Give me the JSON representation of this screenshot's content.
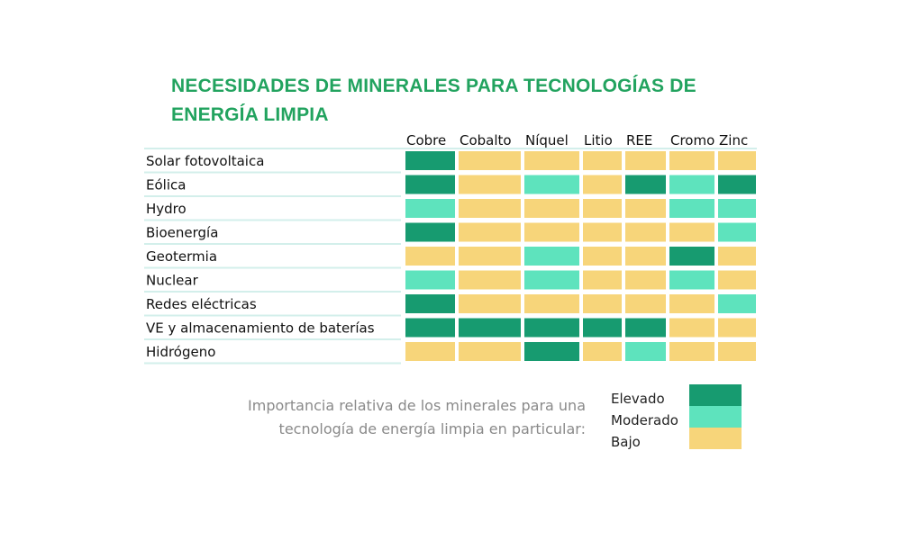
{
  "chart_data": {
    "type": "table",
    "title_lines": [
      "NECESIDADES DE MINERALES PARA TECNOLOGÍAS DE",
      "ENERGÍA LIMPIA"
    ],
    "columns": [
      "Cobre",
      "Cobalto",
      "Níquel",
      "Litio",
      "REE",
      "Cromo",
      "Zinc"
    ],
    "rows": [
      {
        "label": "Solar fotovoltaica",
        "levels": [
          "Elevado",
          "Bajo",
          "Bajo",
          "Bajo",
          "Bajo",
          "Bajo",
          "Bajo"
        ]
      },
      {
        "label": "Eólica",
        "levels": [
          "Elevado",
          "Bajo",
          "Moderado",
          "Bajo",
          "Elevado",
          "Moderado",
          "Elevado"
        ]
      },
      {
        "label": "Hydro",
        "levels": [
          "Moderado",
          "Bajo",
          "Bajo",
          "Bajo",
          "Bajo",
          "Moderado",
          "Moderado"
        ]
      },
      {
        "label": "Bioenergía",
        "levels": [
          "Elevado",
          "Bajo",
          "Bajo",
          "Bajo",
          "Bajo",
          "Bajo",
          "Moderado"
        ]
      },
      {
        "label": "Geotermia",
        "levels": [
          "Bajo",
          "Bajo",
          "Moderado",
          "Bajo",
          "Bajo",
          "Elevado",
          "Bajo"
        ]
      },
      {
        "label": "Nuclear",
        "levels": [
          "Moderado",
          "Bajo",
          "Moderado",
          "Bajo",
          "Bajo",
          "Moderado",
          "Bajo"
        ]
      },
      {
        "label": "Redes eléctricas",
        "levels": [
          "Elevado",
          "Bajo",
          "Bajo",
          "Bajo",
          "Bajo",
          "Bajo",
          "Moderado"
        ]
      },
      {
        "label": "VE y almacenamiento de baterías",
        "levels": [
          "Elevado",
          "Elevado",
          "Elevado",
          "Elevado",
          "Elevado",
          "Bajo",
          "Bajo"
        ]
      },
      {
        "label": "Hidrógeno",
        "levels": [
          "Bajo",
          "Bajo",
          "Elevado",
          "Bajo",
          "Moderado",
          "Bajo",
          "Bajo"
        ]
      }
    ],
    "legend": {
      "caption_lines": [
        "Importancia relativa de los minerales para una",
        "tecnología de energía limpia en particular:"
      ],
      "items": [
        {
          "label": "Elevado",
          "color": "#179b70"
        },
        {
          "label": "Moderado",
          "color": "#5ee3bd"
        },
        {
          "label": "Bajo",
          "color": "#f7d57a"
        }
      ]
    }
  },
  "colors": {
    "title": "#22a35f",
    "separator": "#d3efeb"
  }
}
